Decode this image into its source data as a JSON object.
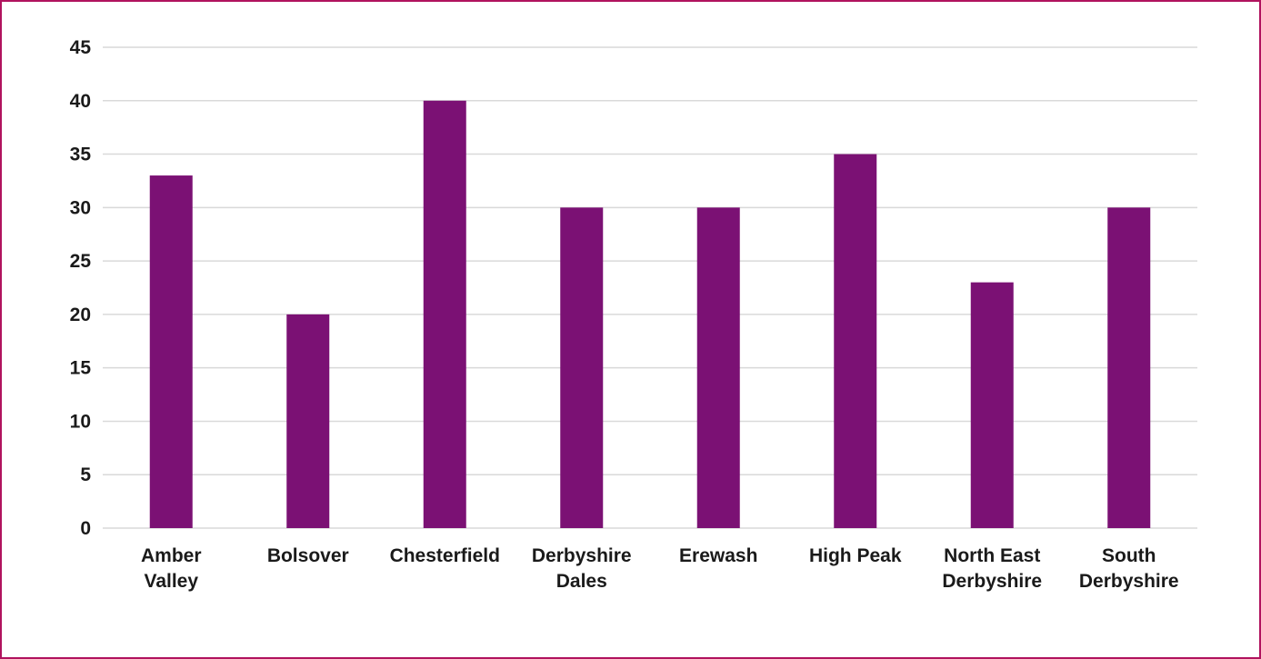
{
  "chart_data": {
    "type": "bar",
    "categories": [
      [
        "Amber",
        "Valley"
      ],
      [
        "Bolsover"
      ],
      [
        "Chesterfield"
      ],
      [
        "Derbyshire",
        "Dales"
      ],
      [
        "Erewash"
      ],
      [
        "High Peak"
      ],
      [
        "North East",
        "Derbyshire"
      ],
      [
        "South",
        "Derbyshire"
      ]
    ],
    "values": [
      33,
      20,
      40,
      30,
      30,
      35,
      23,
      30
    ],
    "yticks": [
      "0",
      "5",
      "10",
      "15",
      "20",
      "25",
      "30",
      "35",
      "40",
      "45"
    ],
    "ylim": [
      0,
      45
    ],
    "grid": true,
    "bar_color": "#7b1174",
    "grid_color": "#d9d9d9",
    "border_color": "#b0135e"
  }
}
